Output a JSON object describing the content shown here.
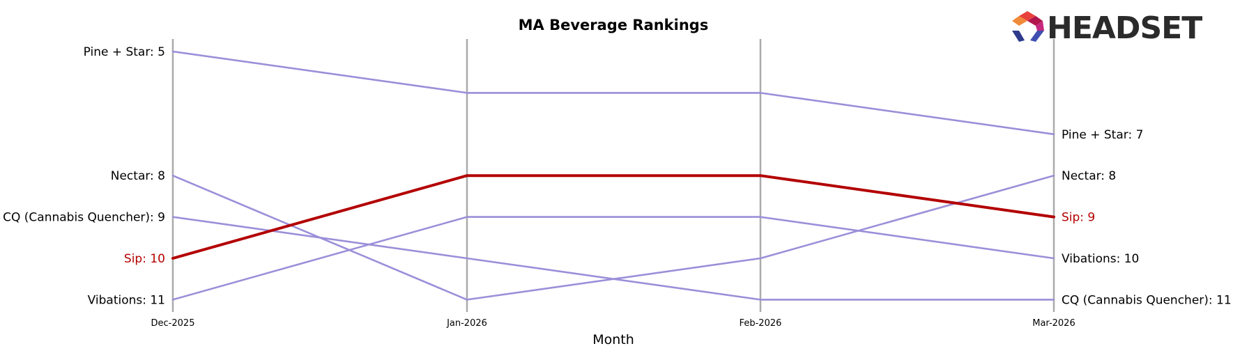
{
  "chart_data": {
    "type": "line",
    "title": "MA Beverage Rankings",
    "xlabel": "Month",
    "ylabel": "",
    "categories": [
      "Dec-2025",
      "Jan-2026",
      "Feb-2026",
      "Mar-2026"
    ],
    "y_axis": {
      "inverted": true,
      "range": [
        5,
        11
      ]
    },
    "grid": "vertical lines at each month",
    "highlight": "Sip",
    "series": [
      {
        "name": "Pine + Star",
        "values": [
          5,
          6,
          6,
          7
        ],
        "color": "#9b8fd9",
        "start_label": "Pine + Star: 5",
        "end_label": "Pine + Star: 7"
      },
      {
        "name": "Nectar",
        "values": [
          8,
          11,
          10,
          8
        ],
        "color": "#9b8fd9",
        "start_label": "Nectar: 8",
        "end_label": "Nectar: 8"
      },
      {
        "name": "CQ (Cannabis Quencher)",
        "values": [
          9,
          10,
          11,
          11
        ],
        "color": "#9b8fd9",
        "start_label": "CQ (Cannabis Quencher): 9",
        "end_label": "CQ (Cannabis Quencher): 11"
      },
      {
        "name": "Sip",
        "values": [
          10,
          8,
          8,
          9
        ],
        "color": "#b30000",
        "start_label": "Sip: 10",
        "end_label": "Sip: 9"
      },
      {
        "name": "Vibations",
        "values": [
          11,
          9,
          9,
          10
        ],
        "color": "#9b8fd9",
        "start_label": "Vibations: 11",
        "end_label": "Vibations: 10"
      }
    ]
  },
  "brand": {
    "name": "HEADSET",
    "logo_colors": [
      "#e8413c",
      "#b0164b",
      "#c6287f",
      "#f08a3a",
      "#2d3a8c",
      "#3f4fb0"
    ]
  }
}
